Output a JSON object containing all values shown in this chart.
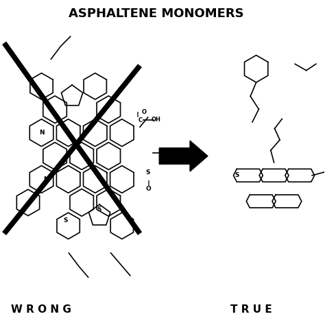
{
  "title": "ASPHALTENE MONOMERS",
  "wrong_label": "W R O N G",
  "true_label": "T R U E",
  "bg_color": "#ffffff",
  "line_color": "#000000",
  "title_fontsize": 13,
  "label_fontsize": 11,
  "arrow_color": "#000000"
}
